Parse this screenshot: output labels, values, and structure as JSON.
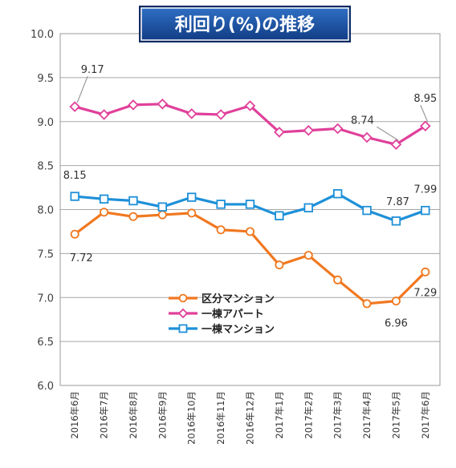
{
  "chart_data": {
    "type": "line",
    "title": "利回り(%)の推移",
    "categories": [
      "2016年6月",
      "2016年7月",
      "2016年8月",
      "2016年9月",
      "2016年10月",
      "2016年11月",
      "2016年12月",
      "2017年1月",
      "2017年2月",
      "2017年3月",
      "2017年4月",
      "2017年5月",
      "2017年6月"
    ],
    "ylim": [
      6.0,
      10.0
    ],
    "ytick_step": 0.5,
    "yticks": [
      "6.0",
      "6.5",
      "7.0",
      "7.5",
      "8.0",
      "8.5",
      "9.0",
      "9.5",
      "10.0"
    ],
    "grid": true,
    "legend_placement": "center",
    "series": [
      {
        "name": "区分マンション",
        "values": [
          7.72,
          7.97,
          7.92,
          7.94,
          7.96,
          7.77,
          7.75,
          7.37,
          7.48,
          7.2,
          6.93,
          6.96,
          7.29
        ],
        "color": "#f07820",
        "marker": "circle"
      },
      {
        "name": "一棟アパート",
        "values": [
          9.17,
          9.08,
          9.19,
          9.2,
          9.09,
          9.08,
          9.18,
          8.88,
          8.9,
          8.92,
          8.82,
          8.74,
          8.95
        ],
        "color": "#e0409a",
        "marker": "diamond"
      },
      {
        "name": "一棟マンション",
        "values": [
          8.15,
          8.12,
          8.1,
          8.03,
          8.14,
          8.06,
          8.06,
          7.93,
          8.02,
          8.18,
          7.99,
          7.87,
          7.99
        ],
        "color": "#1e90d8",
        "marker": "square"
      }
    ],
    "annotations": [
      {
        "series": 1,
        "index": 0,
        "text": "9.17"
      },
      {
        "series": 1,
        "index": 11,
        "text": "8.74"
      },
      {
        "series": 1,
        "index": 12,
        "text": "8.95"
      },
      {
        "series": 2,
        "index": 0,
        "text": "8.15"
      },
      {
        "series": 2,
        "index": 11,
        "text": "7.87"
      },
      {
        "series": 2,
        "index": 12,
        "text": "7.99"
      },
      {
        "series": 0,
        "index": 0,
        "text": "7.72"
      },
      {
        "series": 0,
        "index": 11,
        "text": "6.96"
      },
      {
        "series": 0,
        "index": 12,
        "text": "7.29"
      }
    ]
  }
}
